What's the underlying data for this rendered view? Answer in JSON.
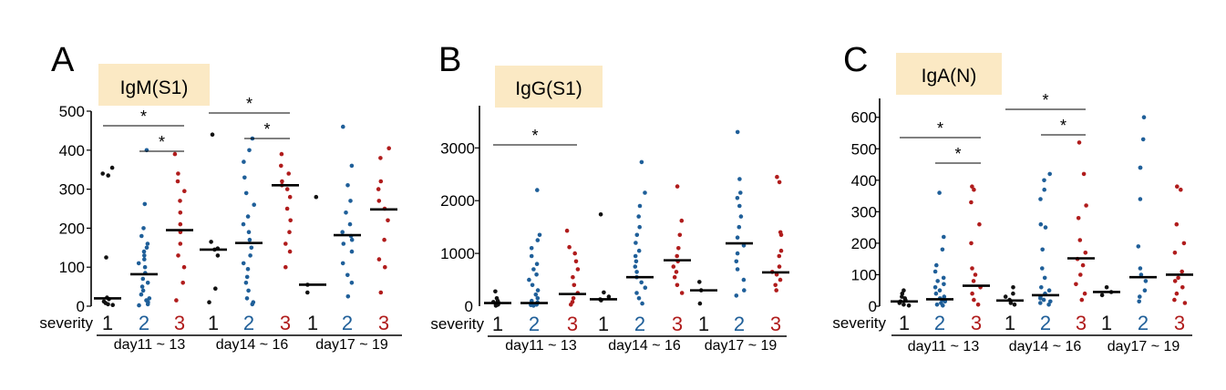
{
  "colors": {
    "sev1": "#111111",
    "sev2": "#1f5f99",
    "sev3": "#b01c1c",
    "title_bg": "#fbe9c4",
    "axis": "#000000"
  },
  "chart_data": [
    {
      "type": "scatter",
      "panel": "A",
      "title": "IgM(S1)",
      "severity_label": "severity",
      "severity_ticks": [
        "1",
        "2",
        "3"
      ],
      "groups": [
        "day11 ~ 13",
        "day14 ~ 16",
        "day17 ~ 19"
      ],
      "ylim": [
        0,
        500
      ],
      "yticks": [
        0,
        100,
        200,
        300,
        400,
        500
      ],
      "medians": [
        [
          20,
          82,
          195
        ],
        [
          145,
          162,
          310
        ],
        [
          55,
          182,
          248
        ]
      ],
      "points": [
        [
          [
            355,
            340,
            335,
            125,
            22,
            18,
            12,
            8,
            5,
            3
          ],
          [
            400,
            262,
            200,
            180,
            160,
            150,
            140,
            130,
            120,
            110,
            100,
            85,
            70,
            60,
            50,
            40,
            30,
            20,
            15,
            10,
            5,
            2
          ],
          [
            390,
            340,
            320,
            295,
            270,
            240,
            210,
            190,
            160,
            130,
            100,
            60,
            15
          ]
        ],
        [
          [
            440,
            165,
            148,
            145,
            130,
            45,
            10
          ],
          [
            430,
            400,
            370,
            330,
            290,
            260,
            230,
            210,
            190,
            170,
            150,
            130,
            110,
            95,
            75,
            60,
            40,
            20,
            10,
            5
          ],
          [
            390,
            360,
            340,
            320,
            310,
            300,
            280,
            250,
            220,
            190,
            160,
            140,
            100
          ]
        ],
        [
          [
            280,
            55,
            35
          ],
          [
            460,
            360,
            310,
            270,
            240,
            210,
            190,
            180,
            170,
            160,
            140,
            110,
            80,
            60,
            25
          ],
          [
            405,
            380,
            320,
            300,
            270,
            250,
            220,
            170,
            120,
            100,
            35
          ]
        ]
      ],
      "significance": [
        {
          "from": [
            0,
            0
          ],
          "to": [
            0,
            2
          ],
          "label": "*"
        },
        {
          "from": [
            0,
            1
          ],
          "to": [
            0,
            2
          ],
          "label": "*"
        },
        {
          "from": [
            1,
            0
          ],
          "to": [
            1,
            2
          ],
          "label": "*"
        },
        {
          "from": [
            1,
            1
          ],
          "to": [
            1,
            2
          ],
          "label": "*"
        }
      ]
    },
    {
      "type": "scatter",
      "panel": "B",
      "title": "IgG(S1)",
      "severity_label": "severity",
      "severity_ticks": [
        "1",
        "2",
        "3"
      ],
      "groups": [
        "day11 ~ 13",
        "day14 ~ 16",
        "day17 ~ 19"
      ],
      "ylim": [
        0,
        3800
      ],
      "yticks": [
        1000,
        2000,
        3000
      ],
      "yticklabels": [
        "1000",
        "2000",
        "3000"
      ],
      "zero_label": "0",
      "medians": [
        [
          60,
          60,
          230
        ],
        [
          130,
          550,
          870
        ],
        [
          300,
          1190,
          640
        ]
      ],
      "points": [
        [
          [
            280,
            150,
            100,
            80,
            60,
            40,
            30,
            20,
            10
          ],
          [
            2200,
            1350,
            1250,
            1100,
            950,
            800,
            700,
            600,
            500,
            400,
            300,
            220,
            150,
            100,
            70,
            50,
            30,
            20,
            10
          ],
          [
            1430,
            1120,
            1000,
            850,
            700,
            550,
            400,
            250,
            150,
            80,
            30
          ]
        ],
        [
          [
            1740,
            260,
            180,
            130,
            110
          ],
          [
            2730,
            2150,
            1900,
            1700,
            1500,
            1350,
            1200,
            1050,
            950,
            850,
            750,
            650,
            550,
            450,
            350,
            250,
            150,
            50
          ],
          [
            2270,
            1620,
            1350,
            1100,
            950,
            850,
            750,
            650,
            550,
            400,
            250
          ]
        ],
        [
          [
            460,
            300,
            50
          ],
          [
            3300,
            2410,
            2150,
            2050,
            1900,
            1700,
            1500,
            1300,
            1150,
            1000,
            850,
            700,
            500,
            300,
            200
          ],
          [
            2450,
            2350,
            1400,
            1350,
            1050,
            950,
            750,
            650,
            600,
            500,
            400,
            300
          ]
        ]
      ],
      "significance": [
        {
          "from": [
            0,
            0
          ],
          "to": [
            0,
            2
          ],
          "label": "*"
        }
      ]
    },
    {
      "type": "scatter",
      "panel": "C",
      "title": "IgA(N)",
      "severity_label": "severity",
      "severity_ticks": [
        "1",
        "2",
        "3"
      ],
      "groups": [
        "day11 ~ 13",
        "day14 ~ 16",
        "day17 ~ 19"
      ],
      "ylim": [
        0,
        660
      ],
      "yticks": [
        0,
        100,
        200,
        300,
        400,
        500,
        600
      ],
      "medians": [
        [
          15,
          22,
          65
        ],
        [
          18,
          35,
          152
        ],
        [
          45,
          92,
          100
        ]
      ],
      "points": [
        [
          [
            50,
            40,
            30,
            25,
            20,
            15,
            10,
            5,
            2
          ],
          [
            360,
            220,
            180,
            130,
            110,
            90,
            80,
            70,
            60,
            50,
            40,
            30,
            25,
            20,
            15,
            10,
            5,
            2
          ],
          [
            380,
            370,
            330,
            260,
            200,
            120,
            100,
            80,
            60,
            40,
            20,
            5
          ]
        ],
        [
          [
            60,
            40,
            30,
            20,
            10,
            5
          ],
          [
            420,
            400,
            370,
            340,
            260,
            250,
            180,
            120,
            90,
            60,
            50,
            40,
            30,
            25,
            20,
            15,
            10,
            5
          ],
          [
            520,
            420,
            320,
            280,
            210,
            170,
            150,
            130,
            100,
            70,
            40,
            20
          ]
        ],
        [
          [
            60,
            45,
            35
          ],
          [
            600,
            530,
            440,
            440,
            340,
            190,
            120,
            100,
            80,
            50,
            30,
            15
          ],
          [
            380,
            370,
            260,
            200,
            170,
            110,
            90,
            80,
            60,
            40,
            20,
            10
          ]
        ]
      ],
      "significance": [
        {
          "from": [
            0,
            0
          ],
          "to": [
            0,
            2
          ],
          "label": "*"
        },
        {
          "from": [
            0,
            1
          ],
          "to": [
            0,
            2
          ],
          "label": "*"
        },
        {
          "from": [
            1,
            0
          ],
          "to": [
            1,
            2
          ],
          "label": "*"
        },
        {
          "from": [
            1,
            1
          ],
          "to": [
            1,
            2
          ],
          "label": "*"
        }
      ]
    }
  ]
}
